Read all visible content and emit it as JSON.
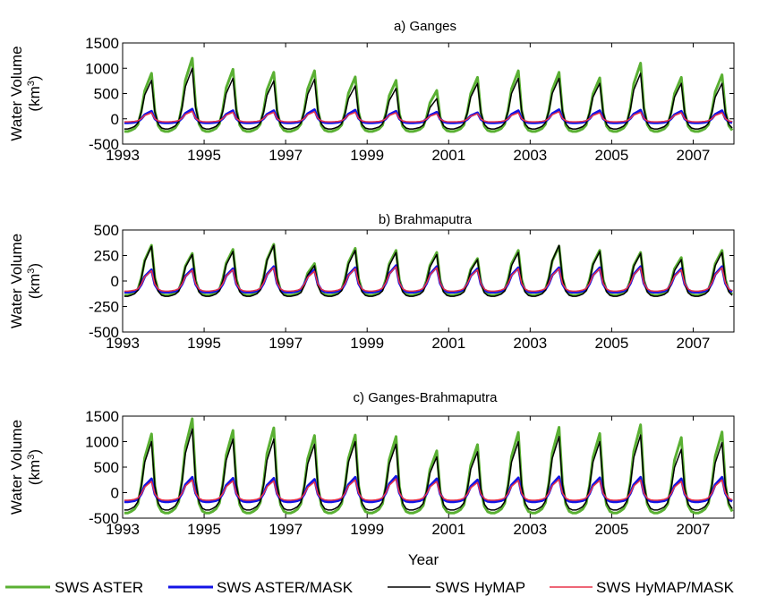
{
  "figure": {
    "xlabel": "Year",
    "legend": [
      {
        "label": "SWS ASTER",
        "color": "#5ab033"
      },
      {
        "label": "SWS ASTER/MASK",
        "color": "#1414e6"
      },
      {
        "label": "SWS HyMAP",
        "color": "#000000"
      },
      {
        "label": "SWS HyMAP/MASK",
        "color": "#e8334a"
      }
    ]
  },
  "chart_data": [
    {
      "type": "line",
      "title": "a) Ganges",
      "ylabel": "Water Volume",
      "ylabel_unit": "(km3)",
      "ylim": [
        -500,
        1500
      ],
      "yticks": [
        -500,
        0,
        500,
        1000,
        1500
      ],
      "xlim": [
        1993,
        2008
      ],
      "xticks": [
        "1993",
        "1995",
        "1997",
        "1999",
        "2001",
        "2003",
        "2005",
        "2007"
      ],
      "series": [
        {
          "name": "SWS ASTER",
          "color": "#5ab033",
          "peaks": [
            900,
            1200,
            980,
            920,
            950,
            830,
            760,
            560,
            820,
            950,
            920,
            810,
            1100,
            820,
            870
          ],
          "base": -250
        },
        {
          "name": "SWS ASTER/MASK",
          "color": "#1414e6",
          "peaks": [
            150,
            190,
            160,
            160,
            180,
            170,
            150,
            130,
            120,
            160,
            180,
            160,
            170,
            150,
            160
          ],
          "base": -80
        },
        {
          "name": "SWS HyMAP",
          "color": "#000000",
          "peaks": [
            760,
            1000,
            800,
            750,
            780,
            650,
            600,
            400,
            700,
            800,
            800,
            700,
            900,
            700,
            700
          ],
          "base": -200
        },
        {
          "name": "SWS HyMAP/MASK",
          "color": "#e8334a",
          "peaks": [
            120,
            150,
            130,
            130,
            140,
            130,
            120,
            100,
            100,
            120,
            140,
            120,
            130,
            120,
            120
          ],
          "base": -60
        }
      ]
    },
    {
      "type": "line",
      "title": "b) Brahmaputra",
      "ylabel": "Water Volume",
      "ylabel_unit": "(km3)",
      "ylim": [
        -500,
        500
      ],
      "yticks": [
        -500,
        -250,
        0,
        250,
        500
      ],
      "xlim": [
        1993,
        2008
      ],
      "xticks": [
        "1993",
        "1995",
        "1997",
        "1999",
        "2001",
        "2003",
        "2005",
        "2007"
      ],
      "series": [
        {
          "name": "SWS ASTER",
          "color": "#5ab033",
          "peaks": [
            350,
            270,
            310,
            360,
            170,
            320,
            300,
            280,
            220,
            300,
            340,
            300,
            280,
            230,
            300
          ],
          "base": -140
        },
        {
          "name": "SWS ASTER/MASK",
          "color": "#1414e6",
          "peaks": [
            110,
            115,
            120,
            140,
            110,
            130,
            150,
            140,
            120,
            130,
            130,
            130,
            140,
            120,
            140
          ],
          "base": -110
        },
        {
          "name": "SWS HyMAP",
          "color": "#000000",
          "peaks": [
            340,
            260,
            290,
            350,
            150,
            300,
            280,
            260,
            210,
            280,
            350,
            290,
            270,
            210,
            280
          ],
          "base": -150
        },
        {
          "name": "SWS HyMAP/MASK",
          "color": "#e8334a",
          "peaks": [
            100,
            105,
            110,
            130,
            95,
            120,
            140,
            130,
            110,
            120,
            120,
            120,
            130,
            110,
            130
          ],
          "base": -100
        }
      ]
    },
    {
      "type": "line",
      "title": "c) Ganges-Brahmaputra",
      "ylabel": "Water Volume",
      "ylabel_unit": "(km3)",
      "ylim": [
        -500,
        1500
      ],
      "yticks": [
        -500,
        0,
        500,
        1000,
        1500
      ],
      "xlim": [
        1993,
        2008
      ],
      "xticks": [
        "1993",
        "1995",
        "1997",
        "1999",
        "2001",
        "2003",
        "2005",
        "2007"
      ],
      "series": [
        {
          "name": "SWS ASTER",
          "color": "#5ab033",
          "peaks": [
            1150,
            1450,
            1220,
            1270,
            1120,
            1130,
            1100,
            820,
            940,
            1180,
            1280,
            1160,
            1330,
            1080,
            1190
          ],
          "base": -400
        },
        {
          "name": "SWS ASTER/MASK",
          "color": "#1414e6",
          "peaks": [
            270,
            300,
            280,
            280,
            260,
            300,
            320,
            270,
            250,
            290,
            310,
            290,
            300,
            270,
            300
          ],
          "base": -180
        },
        {
          "name": "SWS HyMAP",
          "color": "#000000",
          "peaks": [
            1000,
            1250,
            1050,
            1050,
            950,
            1000,
            950,
            700,
            800,
            1000,
            1100,
            1000,
            1130,
            850,
            980
          ],
          "base": -340
        },
        {
          "name": "SWS HyMAP/MASK",
          "color": "#e8334a",
          "peaks": [
            220,
            250,
            230,
            230,
            210,
            250,
            270,
            220,
            200,
            240,
            260,
            240,
            250,
            220,
            250
          ],
          "base": -150
        }
      ]
    }
  ]
}
